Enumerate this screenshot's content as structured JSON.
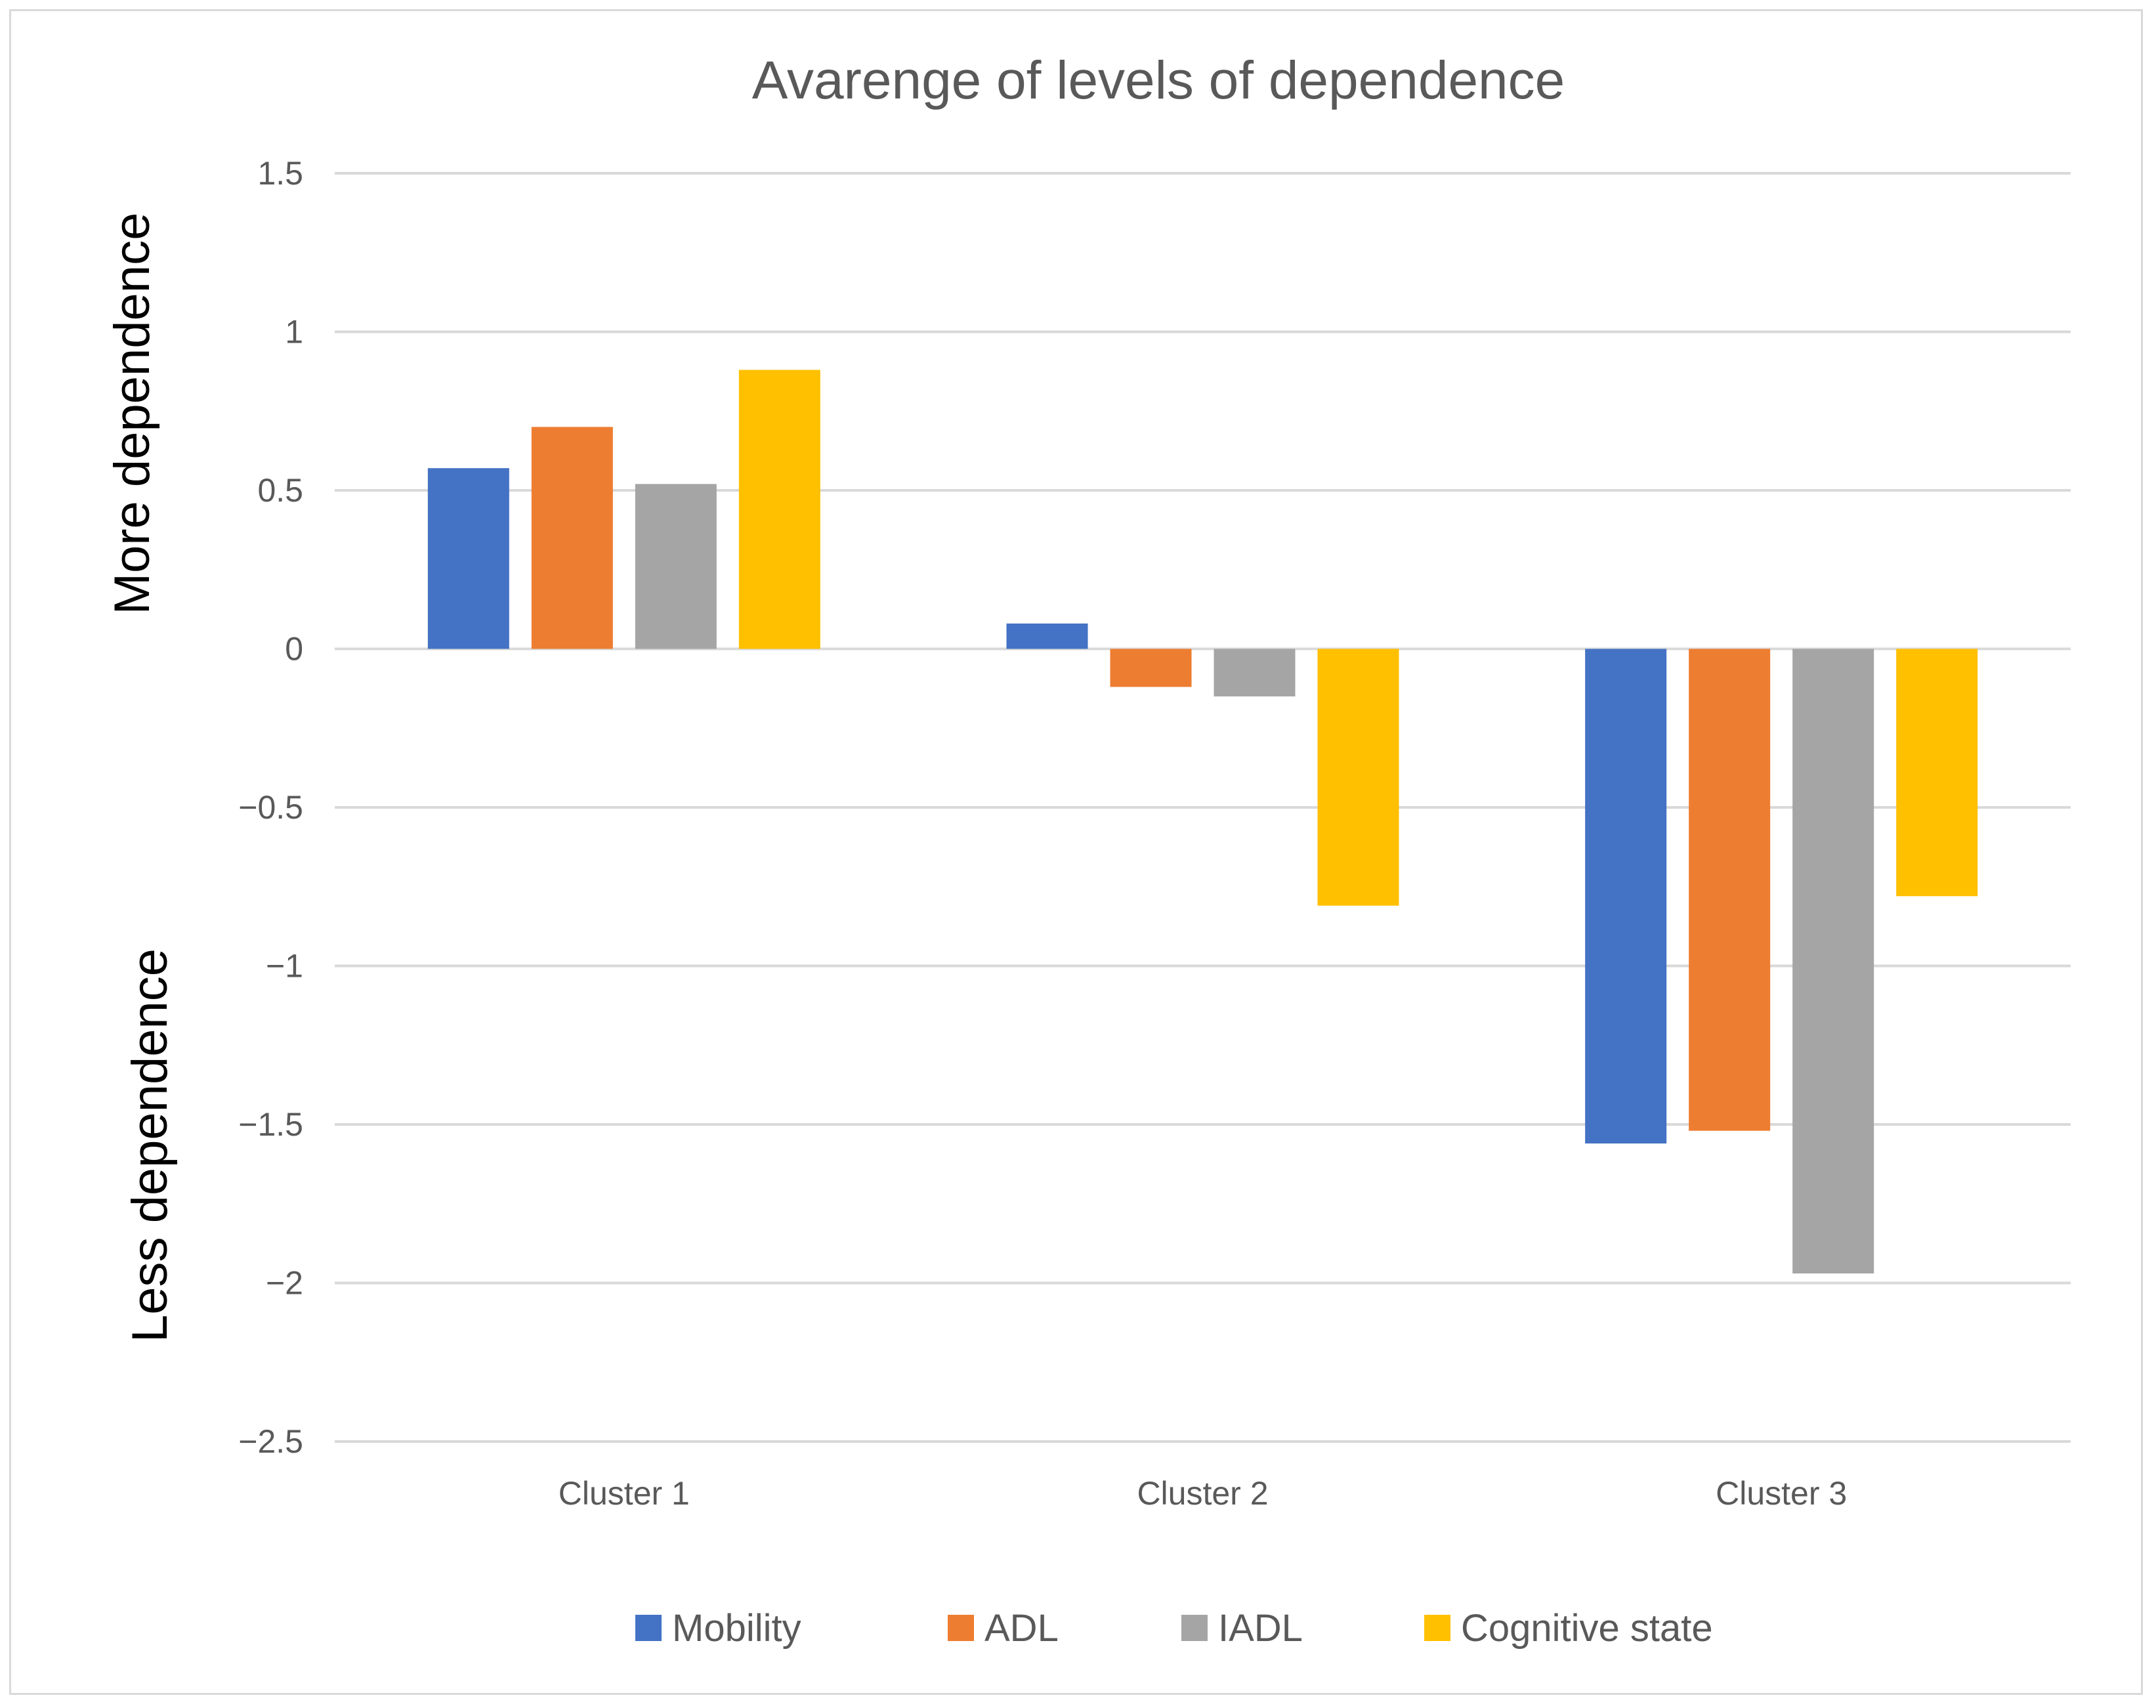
{
  "chart_data": {
    "type": "bar",
    "title": "Avarenge of levels of dependence",
    "categories": [
      "Cluster 1",
      "Cluster 2",
      "Cluster 3"
    ],
    "series": [
      {
        "name": "Mobility",
        "color": "#4472c4",
        "values": [
          0.57,
          0.08,
          -1.56
        ]
      },
      {
        "name": "ADL",
        "color": "#ed7d31",
        "values": [
          0.7,
          -0.12,
          -1.52
        ]
      },
      {
        "name": "IADL",
        "color": "#a5a5a5",
        "values": [
          0.52,
          -0.15,
          -1.97
        ]
      },
      {
        "name": "Cognitive state",
        "color": "#ffc000",
        "values": [
          0.88,
          -0.81,
          -0.78
        ]
      }
    ],
    "yticks": [
      "1.5",
      "1",
      "0.5",
      "0",
      "−0.5",
      "−1",
      "−1.5",
      "−2",
      "−2.5"
    ],
    "ytick_values": [
      1.5,
      1,
      0.5,
      0,
      -0.5,
      -1,
      -1.5,
      -2,
      -2.5
    ],
    "ylim": [
      -2.5,
      1.5
    ],
    "grid": true,
    "legend_position": "bottom",
    "annotations": {
      "upper": "More dependence",
      "lower": "Less dependence"
    }
  }
}
